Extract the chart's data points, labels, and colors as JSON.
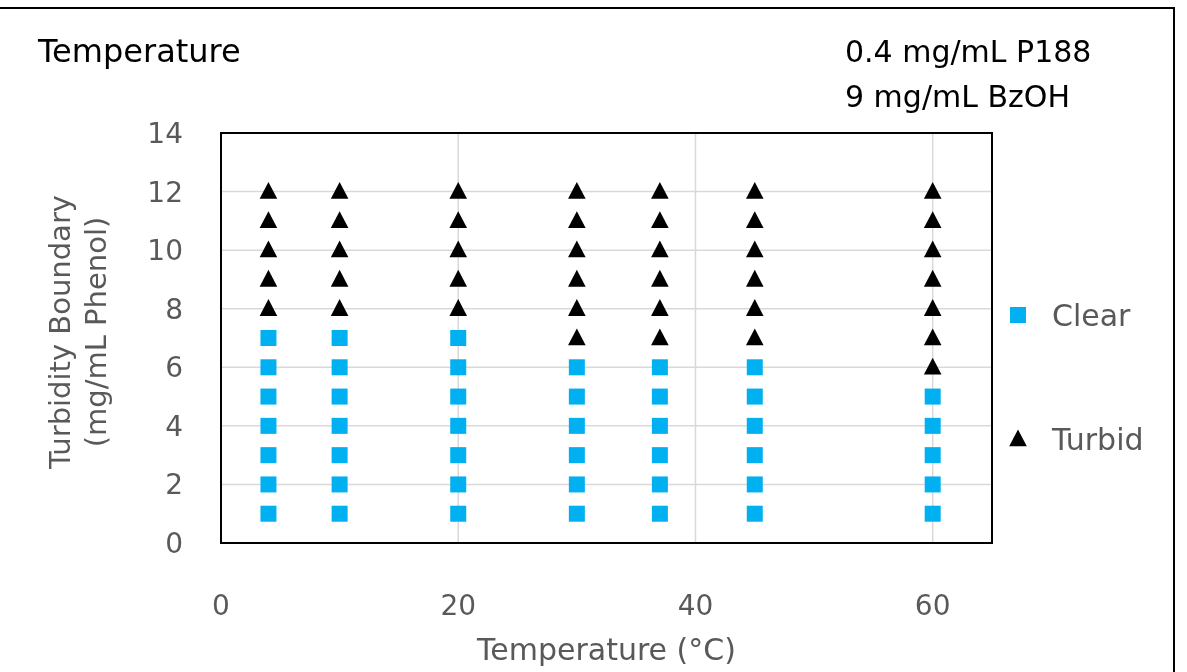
{
  "chart_data": {
    "type": "scatter",
    "title": "Temperature",
    "xlabel": "Temperature (°C)",
    "ylabel": "Turbidity Boundary\n(mg/mL Phenol)",
    "annotations": [
      "0.4 mg/mL P188",
      "9 mg/mL BzOH"
    ],
    "xlim": [
      0,
      65
    ],
    "xticks": [
      0,
      20,
      40,
      60
    ],
    "ylim": [
      0,
      14
    ],
    "yticks": [
      0,
      2,
      4,
      6,
      8,
      10,
      12,
      14
    ],
    "grid": true,
    "legend": "right",
    "series": [
      {
        "name": "Clear",
        "color": "#00b0f0",
        "marker": "square",
        "x": [
          4,
          4,
          4,
          4,
          4,
          4,
          4,
          10,
          10,
          10,
          10,
          10,
          10,
          10,
          20,
          20,
          20,
          20,
          20,
          20,
          20,
          30,
          30,
          30,
          30,
          30,
          30,
          37,
          37,
          37,
          37,
          37,
          37,
          45,
          45,
          45,
          45,
          45,
          45,
          60,
          60,
          60,
          60,
          60
        ],
        "values": [
          1,
          2,
          3,
          4,
          5,
          6,
          7,
          1,
          2,
          3,
          4,
          5,
          6,
          7,
          1,
          2,
          3,
          4,
          5,
          6,
          7,
          1,
          2,
          3,
          4,
          5,
          6,
          1,
          2,
          3,
          4,
          5,
          6,
          1,
          2,
          3,
          4,
          5,
          6,
          1,
          2,
          3,
          4,
          5
        ]
      },
      {
        "name": "Turbid",
        "color": "#000000",
        "marker": "triangle",
        "x": [
          4,
          4,
          4,
          4,
          4,
          10,
          10,
          10,
          10,
          10,
          20,
          20,
          20,
          20,
          20,
          30,
          30,
          30,
          30,
          30,
          30,
          37,
          37,
          37,
          37,
          37,
          37,
          45,
          45,
          45,
          45,
          45,
          45,
          60,
          60,
          60,
          60,
          60,
          60,
          60
        ],
        "values": [
          8,
          9,
          10,
          11,
          12,
          8,
          9,
          10,
          11,
          12,
          8,
          9,
          10,
          11,
          12,
          7,
          8,
          9,
          10,
          11,
          12,
          7,
          8,
          9,
          10,
          11,
          12,
          7,
          8,
          9,
          10,
          11,
          12,
          6,
          7,
          8,
          9,
          10,
          11,
          12
        ]
      }
    ]
  }
}
